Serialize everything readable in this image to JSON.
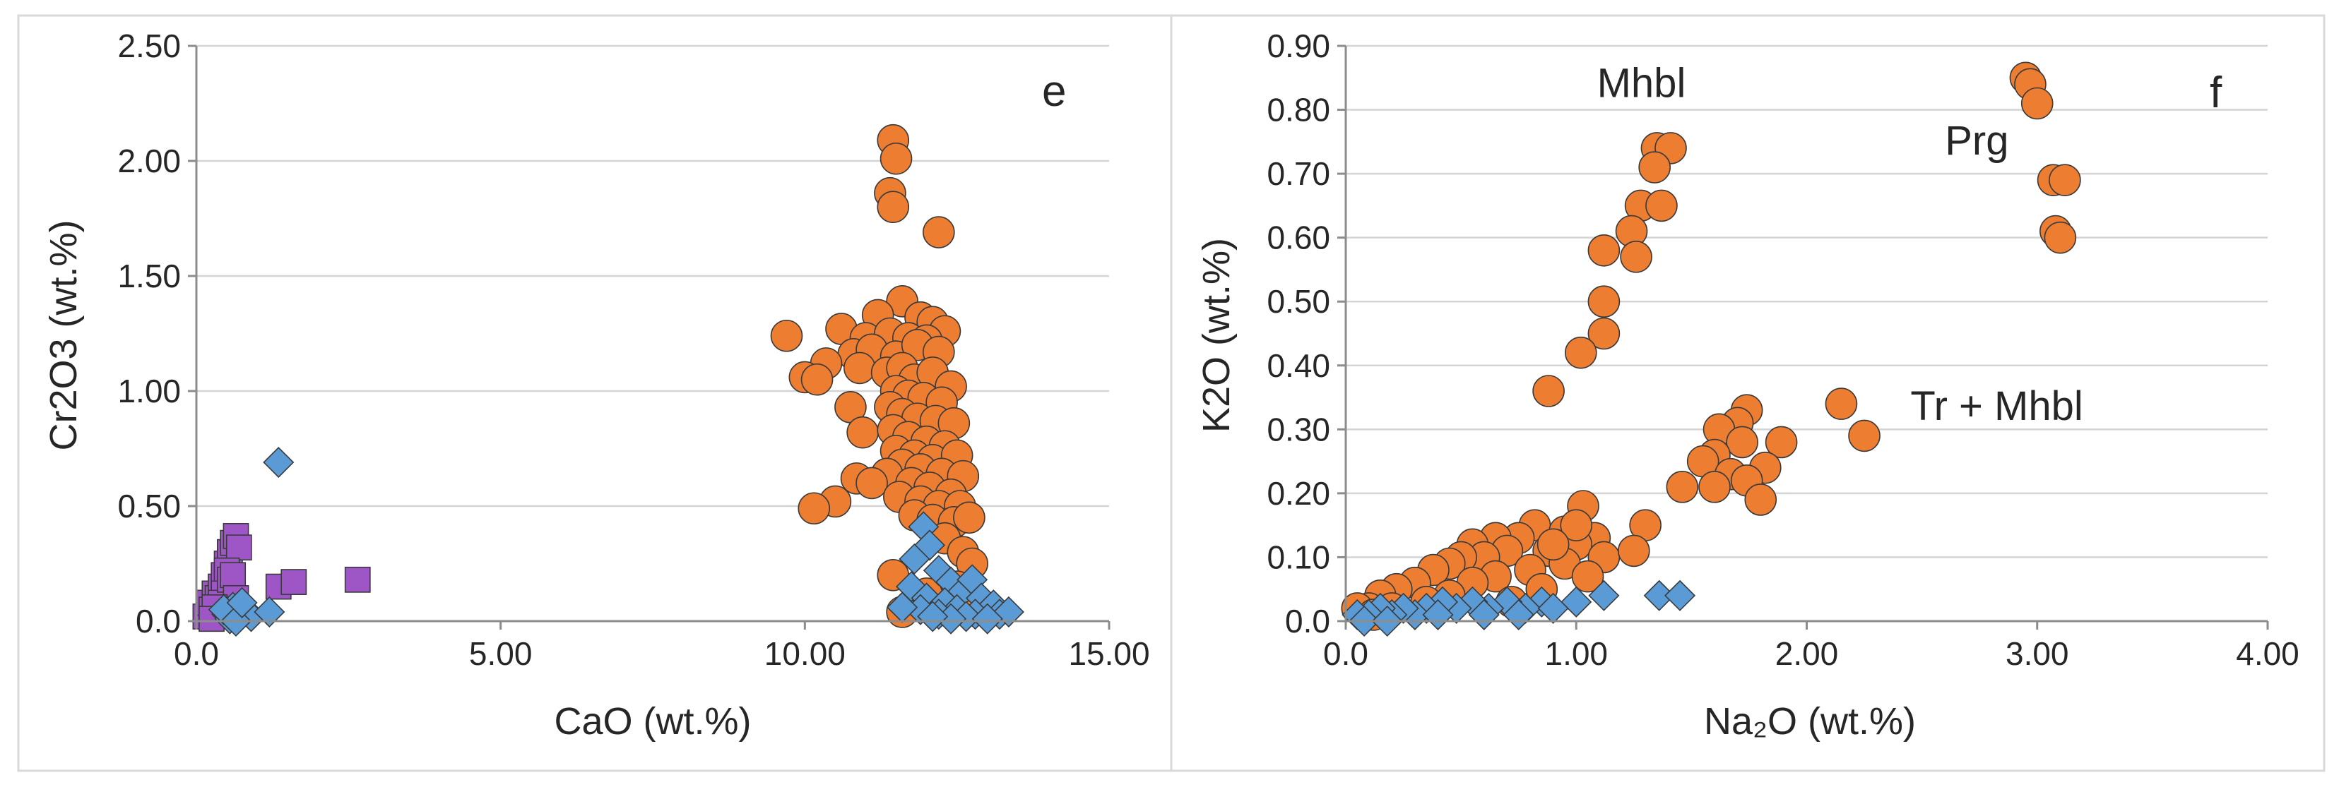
{
  "colors": {
    "circle": "#ed7d31",
    "diamond": "#5b9bd5",
    "square": "#9e56c7",
    "marker_stroke": "#3a3a3a"
  },
  "chart_data": [
    {
      "type": "scatter",
      "panel_label": "e",
      "xlabel": "CaO (wt.%)",
      "ylabel": "Cr2O3 (wt.%)",
      "xlim": [
        0,
        15
      ],
      "ylim": [
        0,
        2.5
      ],
      "xticks": [
        0,
        5,
        10,
        15
      ],
      "yticks": [
        0,
        0.5,
        1.0,
        1.5,
        2.0,
        2.5
      ],
      "xtick_labels": [
        "0.0",
        "5.00",
        "10.00",
        "15.00"
      ],
      "ytick_labels": [
        "0.0",
        "0.50",
        "1.00",
        "1.50",
        "2.00",
        "2.50"
      ],
      "annotations": [],
      "series": [
        {
          "name": "circles",
          "marker": "circle",
          "points": [
            [
              11.45,
              2.09
            ],
            [
              11.5,
              2.01
            ],
            [
              11.4,
              1.86
            ],
            [
              11.45,
              1.8
            ],
            [
              12.2,
              1.69
            ],
            [
              11.6,
              1.39
            ],
            [
              11.2,
              1.33
            ],
            [
              11.9,
              1.32
            ],
            [
              12.1,
              1.3
            ],
            [
              12.3,
              1.26
            ],
            [
              9.7,
              1.24
            ],
            [
              10.6,
              1.27
            ],
            [
              11.0,
              1.23
            ],
            [
              11.4,
              1.25
            ],
            [
              11.7,
              1.23
            ],
            [
              12.0,
              1.22
            ],
            [
              10.8,
              1.16
            ],
            [
              11.1,
              1.18
            ],
            [
              11.5,
              1.15
            ],
            [
              11.85,
              1.2
            ],
            [
              12.2,
              1.17
            ],
            [
              10.35,
              1.12
            ],
            [
              10.0,
              1.06
            ],
            [
              10.2,
              1.05
            ],
            [
              10.9,
              1.1
            ],
            [
              11.35,
              1.08
            ],
            [
              11.6,
              1.1
            ],
            [
              11.8,
              1.05
            ],
            [
              12.1,
              1.08
            ],
            [
              12.4,
              1.02
            ],
            [
              11.5,
              1.0
            ],
            [
              11.7,
              0.98
            ],
            [
              11.95,
              0.97
            ],
            [
              12.25,
              0.95
            ],
            [
              11.4,
              0.93
            ],
            [
              10.75,
              0.93
            ],
            [
              11.6,
              0.9
            ],
            [
              11.85,
              0.88
            ],
            [
              12.15,
              0.87
            ],
            [
              12.45,
              0.86
            ],
            [
              10.95,
              0.82
            ],
            [
              11.45,
              0.83
            ],
            [
              11.7,
              0.8
            ],
            [
              12.0,
              0.78
            ],
            [
              12.3,
              0.76
            ],
            [
              11.5,
              0.74
            ],
            [
              11.8,
              0.72
            ],
            [
              12.1,
              0.7
            ],
            [
              12.5,
              0.72
            ],
            [
              11.6,
              0.68
            ],
            [
              11.9,
              0.66
            ],
            [
              12.25,
              0.64
            ],
            [
              12.6,
              0.63
            ],
            [
              11.35,
              0.64
            ],
            [
              10.85,
              0.62
            ],
            [
              11.1,
              0.6
            ],
            [
              11.75,
              0.6
            ],
            [
              12.05,
              0.58
            ],
            [
              12.4,
              0.55
            ],
            [
              10.5,
              0.52
            ],
            [
              11.55,
              0.54
            ],
            [
              11.9,
              0.52
            ],
            [
              12.2,
              0.5
            ],
            [
              12.55,
              0.5
            ],
            [
              10.15,
              0.49
            ],
            [
              11.8,
              0.46
            ],
            [
              12.1,
              0.44
            ],
            [
              12.45,
              0.43
            ],
            [
              12.7,
              0.45
            ],
            [
              12.3,
              0.36
            ],
            [
              12.6,
              0.3
            ],
            [
              12.75,
              0.25
            ],
            [
              11.45,
              0.2
            ],
            [
              12.0,
              0.12
            ],
            [
              12.5,
              0.15
            ],
            [
              11.6,
              0.04
            ],
            [
              12.85,
              0.08
            ],
            [
              13.0,
              0.05
            ]
          ]
        },
        {
          "name": "diamonds",
          "marker": "diamond",
          "points": [
            [
              1.35,
              0.69
            ],
            [
              11.95,
              0.41
            ],
            [
              12.05,
              0.33
            ],
            [
              11.8,
              0.27
            ],
            [
              12.2,
              0.22
            ],
            [
              12.4,
              0.17
            ],
            [
              11.75,
              0.15
            ],
            [
              12.6,
              0.13
            ],
            [
              12.75,
              0.18
            ],
            [
              12.0,
              0.1
            ],
            [
              12.3,
              0.08
            ],
            [
              12.9,
              0.1
            ],
            [
              13.1,
              0.07
            ],
            [
              12.5,
              0.05
            ],
            [
              11.9,
              0.05
            ],
            [
              12.2,
              0.03
            ],
            [
              12.8,
              0.03
            ],
            [
              13.2,
              0.03
            ],
            [
              13.35,
              0.04
            ],
            [
              12.65,
              0.02
            ],
            [
              12.4,
              0.01
            ],
            [
              11.6,
              0.06
            ],
            [
              13.0,
              0.01
            ],
            [
              12.1,
              0.02
            ],
            [
              0.5,
              0.03
            ],
            [
              0.6,
              0.06
            ],
            [
              0.7,
              0.02
            ],
            [
              0.8,
              0.05
            ],
            [
              0.55,
              0.01
            ],
            [
              0.9,
              0.02
            ],
            [
              1.2,
              0.04
            ],
            [
              0.45,
              0.05
            ],
            [
              0.65,
              0.0
            ],
            [
              0.75,
              0.08
            ]
          ]
        },
        {
          "name": "squares",
          "marker": "square",
          "points": [
            [
              0.15,
              0.02
            ],
            [
              0.2,
              0.08
            ],
            [
              0.25,
              0.05
            ],
            [
              0.3,
              0.12
            ],
            [
              0.35,
              0.1
            ],
            [
              0.4,
              0.15
            ],
            [
              0.45,
              0.2
            ],
            [
              0.5,
              0.25
            ],
            [
              0.55,
              0.3
            ],
            [
              0.6,
              0.34
            ],
            [
              0.65,
              0.37
            ],
            [
              0.7,
              0.32
            ],
            [
              0.5,
              0.22
            ],
            [
              0.45,
              0.12
            ],
            [
              0.4,
              0.08
            ],
            [
              0.55,
              0.18
            ],
            [
              0.6,
              0.2
            ],
            [
              0.35,
              0.03
            ],
            [
              0.65,
              0.1
            ],
            [
              0.5,
              0.05
            ],
            [
              0.3,
              0.06
            ],
            [
              0.25,
              0.01
            ],
            [
              1.35,
              0.15
            ],
            [
              1.6,
              0.17
            ],
            [
              2.65,
              0.18
            ]
          ]
        }
      ]
    },
    {
      "type": "scatter",
      "panel_label": "f",
      "xlabel": "Na₂O (wt.%)",
      "ylabel": "K2O (wt.%)",
      "xlim": [
        0,
        4
      ],
      "ylim": [
        0,
        0.9
      ],
      "xticks": [
        0,
        1,
        2,
        3,
        4
      ],
      "yticks": [
        0,
        0.1,
        0.2,
        0.3,
        0.4,
        0.5,
        0.6,
        0.7,
        0.8,
        0.9
      ],
      "xtick_labels": [
        "0.0",
        "1.00",
        "2.00",
        "3.00",
        "4.00"
      ],
      "ytick_labels": [
        "0.0",
        "0.10",
        "0.20",
        "0.30",
        "0.40",
        "0.50",
        "0.60",
        "0.70",
        "0.80",
        "0.90"
      ],
      "annotations": [
        {
          "text": "Mhbl",
          "x": 1.09,
          "y": 0.82
        },
        {
          "text": "Prg",
          "x": 2.6,
          "y": 0.73
        },
        {
          "text": "Tr + Mhbl",
          "x": 2.45,
          "y": 0.315
        }
      ],
      "series": [
        {
          "name": "circles",
          "marker": "circle",
          "points": [
            [
              2.95,
              0.85
            ],
            [
              2.97,
              0.84
            ],
            [
              3.0,
              0.81
            ],
            [
              3.07,
              0.69
            ],
            [
              3.12,
              0.69
            ],
            [
              3.08,
              0.61
            ],
            [
              3.1,
              0.6
            ],
            [
              1.35,
              0.74
            ],
            [
              1.41,
              0.74
            ],
            [
              1.34,
              0.71
            ],
            [
              1.28,
              0.65
            ],
            [
              1.37,
              0.65
            ],
            [
              1.24,
              0.61
            ],
            [
              1.12,
              0.58
            ],
            [
              1.26,
              0.57
            ],
            [
              1.12,
              0.5
            ],
            [
              1.12,
              0.45
            ],
            [
              1.02,
              0.42
            ],
            [
              0.88,
              0.36
            ],
            [
              2.15,
              0.34
            ],
            [
              1.74,
              0.33
            ],
            [
              1.7,
              0.31
            ],
            [
              1.62,
              0.3
            ],
            [
              2.25,
              0.29
            ],
            [
              1.89,
              0.28
            ],
            [
              1.72,
              0.28
            ],
            [
              1.6,
              0.26
            ],
            [
              1.55,
              0.25
            ],
            [
              1.82,
              0.24
            ],
            [
              1.67,
              0.23
            ],
            [
              1.74,
              0.22
            ],
            [
              1.6,
              0.21
            ],
            [
              1.46,
              0.21
            ],
            [
              1.8,
              0.19
            ],
            [
              1.03,
              0.18
            ],
            [
              1.3,
              0.15
            ],
            [
              0.82,
              0.15
            ],
            [
              0.95,
              0.14
            ],
            [
              1.08,
              0.13
            ],
            [
              1.0,
              0.12
            ],
            [
              0.75,
              0.13
            ],
            [
              0.65,
              0.13
            ],
            [
              0.55,
              0.12
            ],
            [
              0.88,
              0.11
            ],
            [
              1.12,
              0.1
            ],
            [
              1.25,
              0.11
            ],
            [
              0.7,
              0.11
            ],
            [
              0.6,
              0.1
            ],
            [
              0.5,
              0.1
            ],
            [
              0.45,
              0.09
            ],
            [
              0.95,
              0.09
            ],
            [
              0.8,
              0.08
            ],
            [
              0.38,
              0.08
            ],
            [
              1.05,
              0.07
            ],
            [
              0.65,
              0.07
            ],
            [
              0.3,
              0.06
            ],
            [
              0.55,
              0.06
            ],
            [
              0.22,
              0.05
            ],
            [
              0.85,
              0.05
            ],
            [
              0.45,
              0.04
            ],
            [
              0.15,
              0.04
            ],
            [
              0.35,
              0.03
            ],
            [
              0.1,
              0.02
            ],
            [
              0.05,
              0.02
            ],
            [
              0.2,
              0.02
            ],
            [
              0.72,
              0.03
            ],
            [
              0.12,
              0.01
            ],
            [
              1.0,
              0.15
            ],
            [
              0.9,
              0.12
            ]
          ]
        },
        {
          "name": "diamonds",
          "marker": "diamond",
          "points": [
            [
              1.36,
              0.04
            ],
            [
              1.45,
              0.04
            ],
            [
              1.12,
              0.04
            ],
            [
              1.0,
              0.03
            ],
            [
              0.85,
              0.03
            ],
            [
              0.78,
              0.02
            ],
            [
              0.7,
              0.03
            ],
            [
              0.62,
              0.02
            ],
            [
              0.55,
              0.03
            ],
            [
              0.48,
              0.02
            ],
            [
              0.42,
              0.03
            ],
            [
              0.35,
              0.02
            ],
            [
              0.3,
              0.01
            ],
            [
              0.25,
              0.02
            ],
            [
              0.2,
              0.01
            ],
            [
              0.15,
              0.02
            ],
            [
              0.1,
              0.01
            ],
            [
              0.05,
              0.01
            ],
            [
              0.08,
              0.0
            ],
            [
              0.4,
              0.01
            ],
            [
              0.6,
              0.01
            ],
            [
              0.9,
              0.02
            ],
            [
              0.75,
              0.01
            ],
            [
              0.18,
              0.0
            ]
          ]
        }
      ]
    }
  ]
}
